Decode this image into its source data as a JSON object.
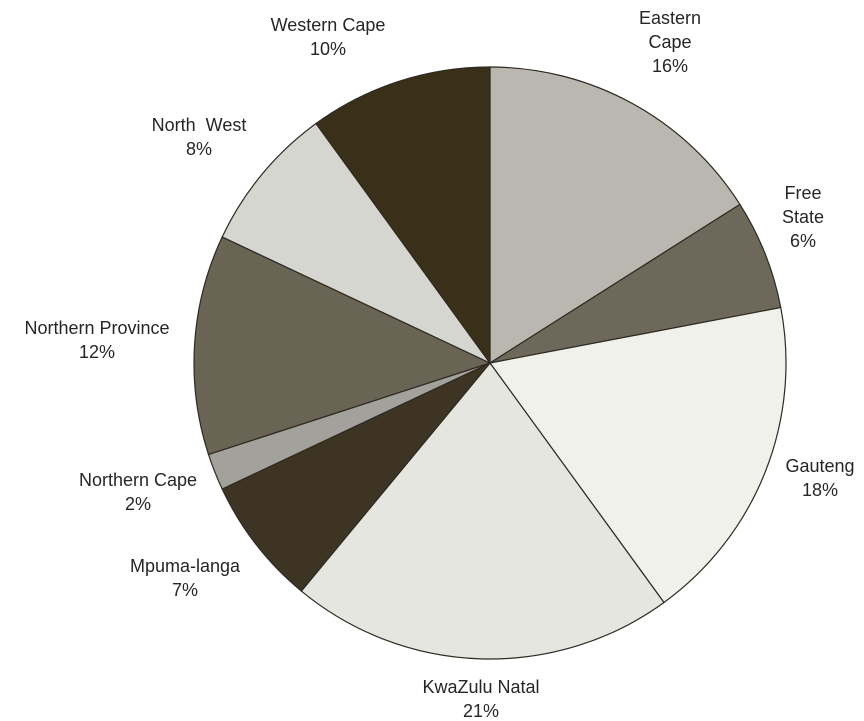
{
  "chart_data": {
    "type": "pie",
    "start_angle_deg": 0,
    "direction": "clockwise",
    "slices": [
      {
        "label_lines": [
          "Eastern",
          "Cape"
        ],
        "percent_label": "16%",
        "value": 16,
        "color": "#b9b7af"
      },
      {
        "label_lines": [
          "Free",
          "State"
        ],
        "percent_label": "6%",
        "value": 6,
        "color": "#6e685a"
      },
      {
        "label_lines": [
          "Gauteng"
        ],
        "percent_label": "18%",
        "value": 18,
        "color": "#f1f1ec"
      },
      {
        "label_lines": [
          "KwaZulu Natal"
        ],
        "percent_label": "21%",
        "value": 21,
        "color": "#e6e6e1"
      },
      {
        "label_lines": [
          "Mpuma-langa"
        ],
        "percent_label": "7%",
        "value": 7,
        "color": "#3d3423"
      },
      {
        "label_lines": [
          "Northern Cape"
        ],
        "percent_label": "2%",
        "value": 2,
        "color": "#a3a19b"
      },
      {
        "label_lines": [
          "Northern Province"
        ],
        "percent_label": "12%",
        "value": 12,
        "color": "#6a6454"
      },
      {
        "label_lines": [
          "North  West"
        ],
        "percent_label": "8%",
        "value": 8,
        "color": "#d6d6d1"
      },
      {
        "label_lines": [
          "Western Cape"
        ],
        "percent_label": "10%",
        "value": 10,
        "color": "#3a2f19"
      }
    ]
  }
}
